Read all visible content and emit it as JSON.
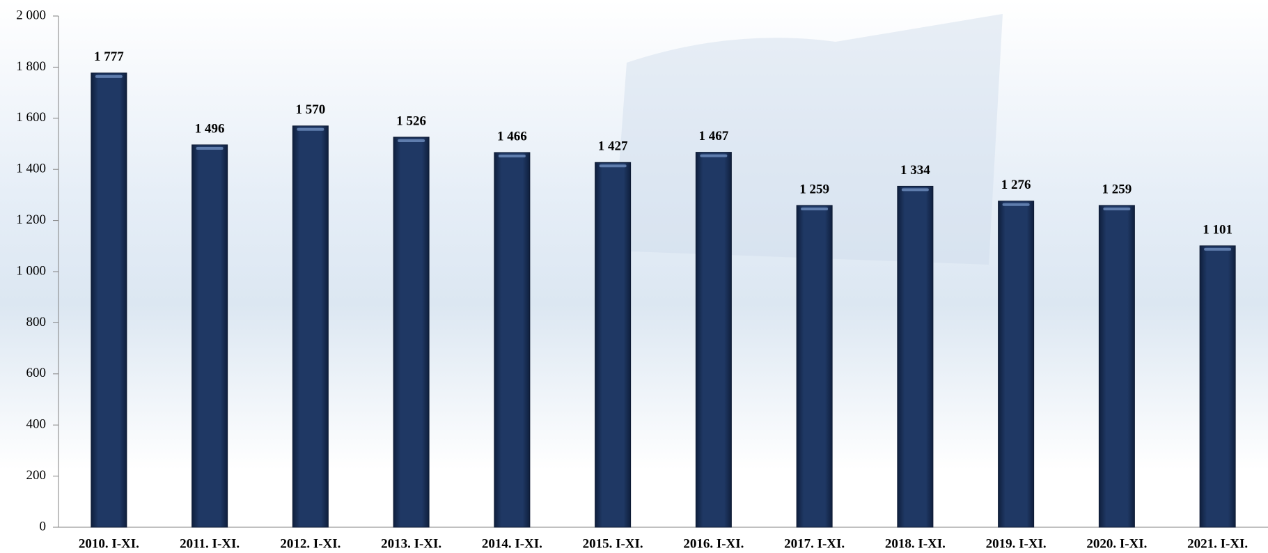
{
  "chart_data": {
    "type": "bar",
    "categories": [
      "2010. I-XI.",
      "2011. I-XI.",
      "2012. I-XI.",
      "2013. I-XI.",
      "2014. I-XI.",
      "2015. I-XI.",
      "2016. I-XI.",
      "2017. I-XI.",
      "2018. I-XI.",
      "2019. I-XI.",
      "2020. I-XI.",
      "2021. I-XI."
    ],
    "values": [
      1777,
      1496,
      1570,
      1526,
      1466,
      1427,
      1467,
      1259,
      1334,
      1276,
      1259,
      1101
    ],
    "value_labels": [
      "1 777",
      "1 496",
      "1 570",
      "1 526",
      "1 466",
      "1 427",
      "1 467",
      "1 259",
      "1 334",
      "1 276",
      "1 259",
      "1 101"
    ],
    "color": "#1f3864",
    "ylim": [
      0,
      2000
    ],
    "yticks": [
      0,
      200,
      400,
      600,
      800,
      {
        "value": 1000,
        "label": "1 000"
      },
      {
        "value": 1200,
        "label": "1 200"
      },
      {
        "value": 1400,
        "label": "1 400"
      },
      {
        "value": 1600,
        "label": "1 600"
      },
      {
        "value": 1800,
        "label": "1 800"
      },
      {
        "value": 2000,
        "label": "2 000"
      }
    ]
  }
}
